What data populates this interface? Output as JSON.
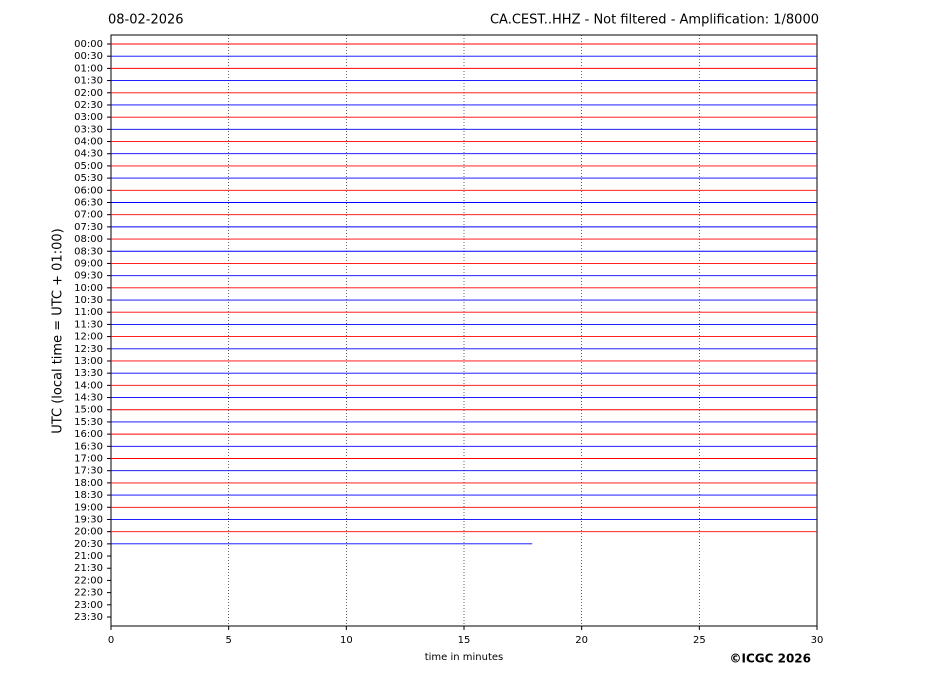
{
  "chart_data": {
    "type": "helicorder",
    "title": "08-02-2026",
    "subtitle": "CA.CEST..HHZ - Not filtered - Amplification: 1/8000",
    "y_label": "UTC (local time = UTC + 01:00)",
    "x_label": "time in minutes",
    "copyright": "©ICGC 2026",
    "categories": [
      "00:00",
      "00:30",
      "01:00",
      "01:30",
      "02:00",
      "02:30",
      "03:00",
      "03:30",
      "04:00",
      "04:30",
      "05:00",
      "05:30",
      "06:00",
      "06:30",
      "07:00",
      "07:30",
      "08:00",
      "08:30",
      "09:00",
      "09:30",
      "10:00",
      "10:30",
      "11:00",
      "11:30",
      "12:00",
      "12:30",
      "13:00",
      "13:30",
      "14:00",
      "14:30",
      "15:00",
      "15:30",
      "16:00",
      "16:30",
      "17:00",
      "17:30",
      "18:00",
      "18:30",
      "19:00",
      "19:30",
      "20:00",
      "20:30",
      "21:00",
      "21:30",
      "22:00",
      "22:30",
      "23:00",
      "23:30"
    ],
    "values": [
      30,
      30,
      30,
      30,
      30,
      30,
      30,
      30,
      30,
      30,
      30,
      30,
      30,
      30,
      30,
      30,
      30,
      30,
      30,
      30,
      30,
      30,
      30,
      30,
      30,
      30,
      30,
      30,
      30,
      30,
      30,
      30,
      30,
      30,
      30,
      30,
      30,
      30,
      30,
      30,
      30,
      17.9,
      null,
      null,
      null,
      null,
      null,
      null
    ],
    "colors": [
      "#ff0000",
      "#0000ff"
    ],
    "xlim": [
      0,
      30
    ],
    "xticks": [
      0,
      5,
      10,
      15,
      20,
      25,
      30
    ],
    "grid": true
  }
}
